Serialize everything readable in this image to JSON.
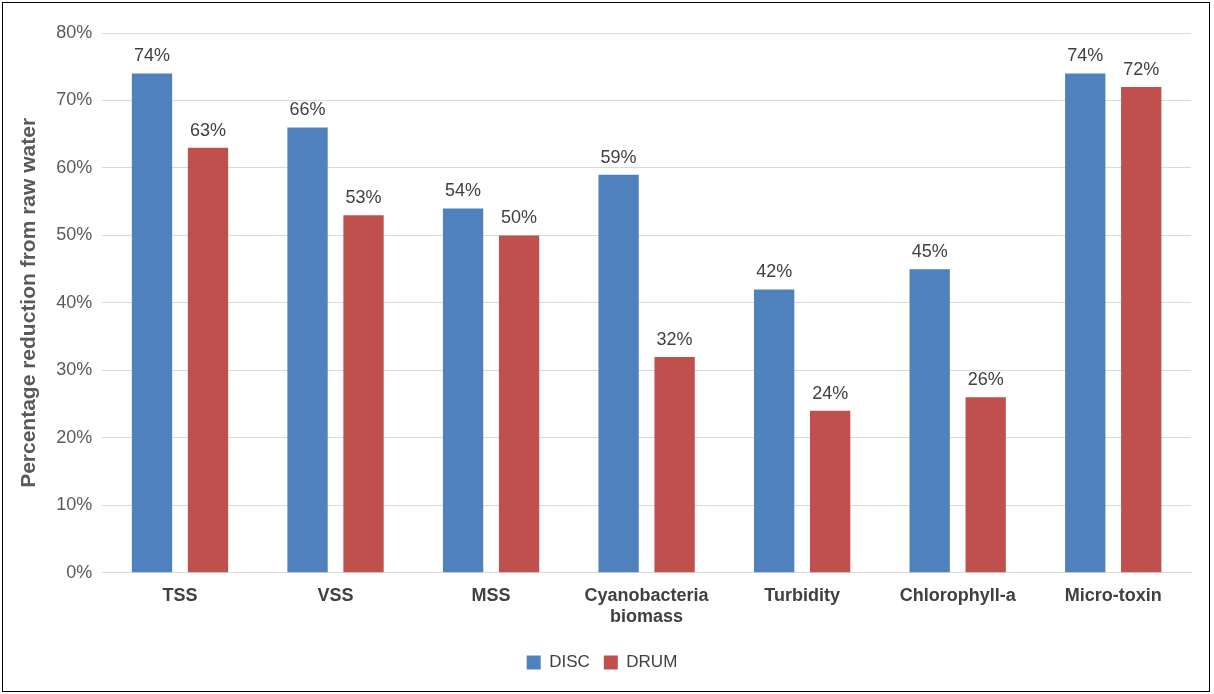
{
  "chart_data": {
    "type": "bar",
    "ylabel": "Percentage reduction from raw water",
    "categories": [
      "TSS",
      "VSS",
      "MSS",
      "Cyanobacteria biomass",
      "Turbidity",
      "Chlorophyll-a",
      "Micro-toxin"
    ],
    "series": [
      {
        "name": "DISC",
        "color": "#4f81bd",
        "values": [
          74,
          66,
          54,
          59,
          42,
          45,
          74
        ],
        "value_labels": [
          "74%",
          "66%",
          "54%",
          "59%",
          "42%",
          "45%",
          "74%"
        ]
      },
      {
        "name": "DRUM",
        "color": "#c0504d",
        "values": [
          63,
          53,
          50,
          32,
          24,
          26,
          72
        ],
        "value_labels": [
          "63%",
          "53%",
          "50%",
          "32%",
          "24%",
          "26%",
          "72%"
        ]
      }
    ],
    "ylim": [
      0,
      80
    ],
    "yticks": [
      {
        "value": 0,
        "label": "0%"
      },
      {
        "value": 10,
        "label": "10%"
      },
      {
        "value": 20,
        "label": "20%"
      },
      {
        "value": 30,
        "label": "30%"
      },
      {
        "value": 40,
        "label": "40%"
      },
      {
        "value": 50,
        "label": "50%"
      },
      {
        "value": 60,
        "label": "60%"
      },
      {
        "value": 70,
        "label": "70%"
      },
      {
        "value": 80,
        "label": "80%"
      }
    ],
    "grid": "y",
    "legend": "bottom"
  }
}
